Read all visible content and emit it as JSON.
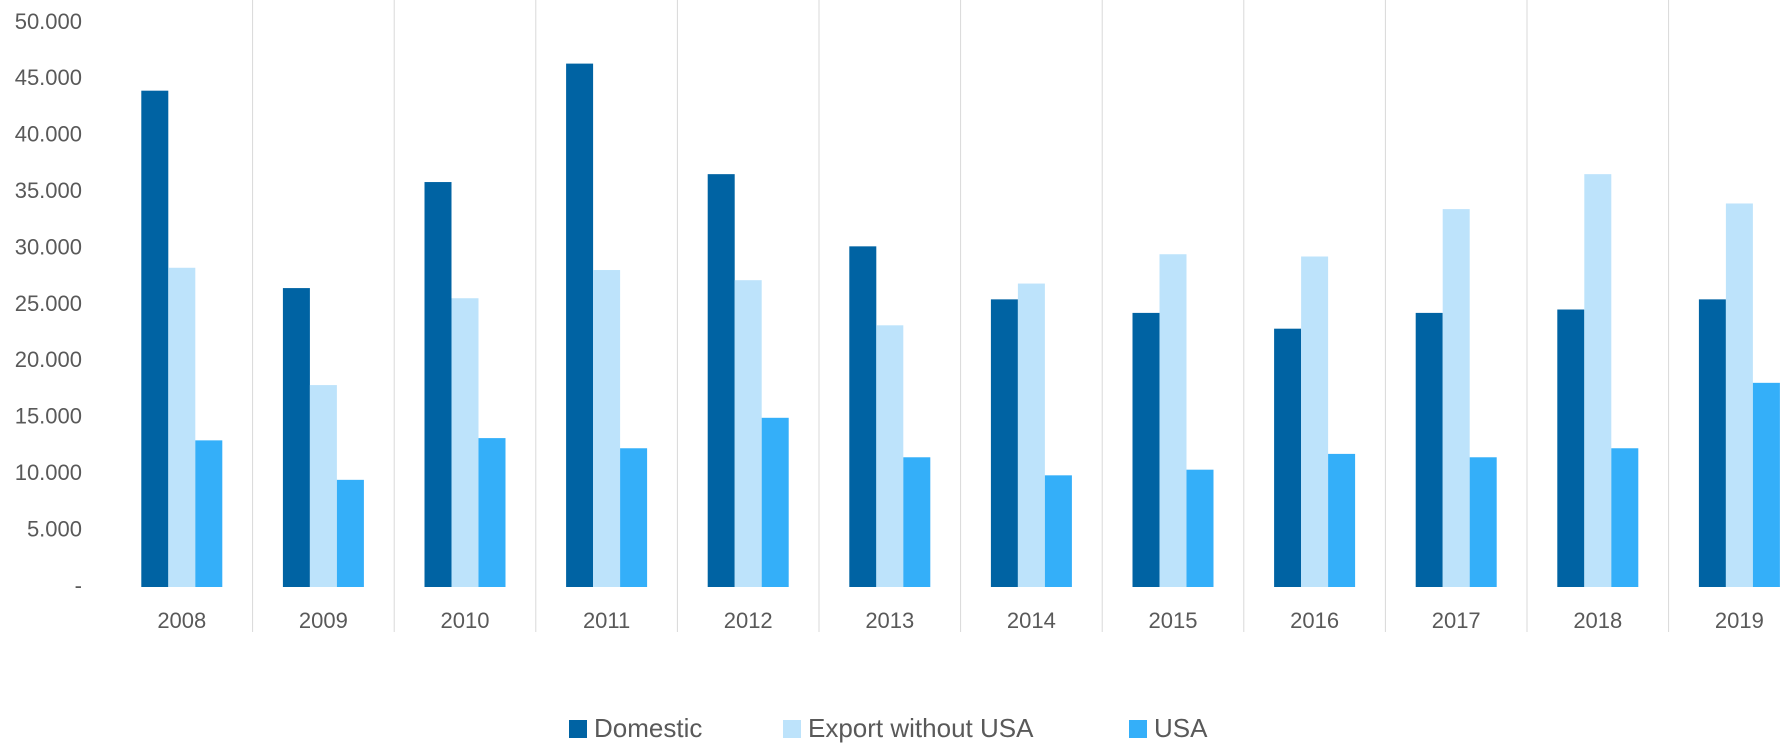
{
  "chart_data": {
    "type": "bar",
    "categories": [
      "2008",
      "2009",
      "2010",
      "2011",
      "2012",
      "2013",
      "2014",
      "2015",
      "2016",
      "2017",
      "2018",
      "2019"
    ],
    "series": [
      {
        "name": "Domestic",
        "color": "#0063a3",
        "values": [
          44000,
          26500,
          35900,
          46400,
          36600,
          30200,
          25500,
          24300,
          22900,
          24300,
          24600,
          25500
        ]
      },
      {
        "name": "Export without USA",
        "color": "#bde3fb",
        "values": [
          28300,
          17900,
          25600,
          28100,
          27200,
          23200,
          26900,
          29500,
          29300,
          33500,
          36600,
          34000
        ]
      },
      {
        "name": "USA",
        "color": "#34aff9",
        "values": [
          13000,
          9500,
          13200,
          12300,
          15000,
          11500,
          9900,
          10400,
          11800,
          11500,
          12300,
          18100
        ]
      }
    ],
    "ylim": [
      0,
      50000
    ],
    "yticks": [
      {
        "value": 0,
        "label": "-"
      },
      {
        "value": 5000,
        "label": "5.000"
      },
      {
        "value": 10000,
        "label": "10.000"
      },
      {
        "value": 15000,
        "label": "15.000"
      },
      {
        "value": 20000,
        "label": "20.000"
      },
      {
        "value": 25000,
        "label": "25.000"
      },
      {
        "value": 30000,
        "label": "30.000"
      },
      {
        "value": 35000,
        "label": "35.000"
      },
      {
        "value": 40000,
        "label": "40.000"
      },
      {
        "value": 45000,
        "label": "45.000"
      },
      {
        "value": 50000,
        "label": "50.000"
      }
    ],
    "legend": "bottom"
  }
}
